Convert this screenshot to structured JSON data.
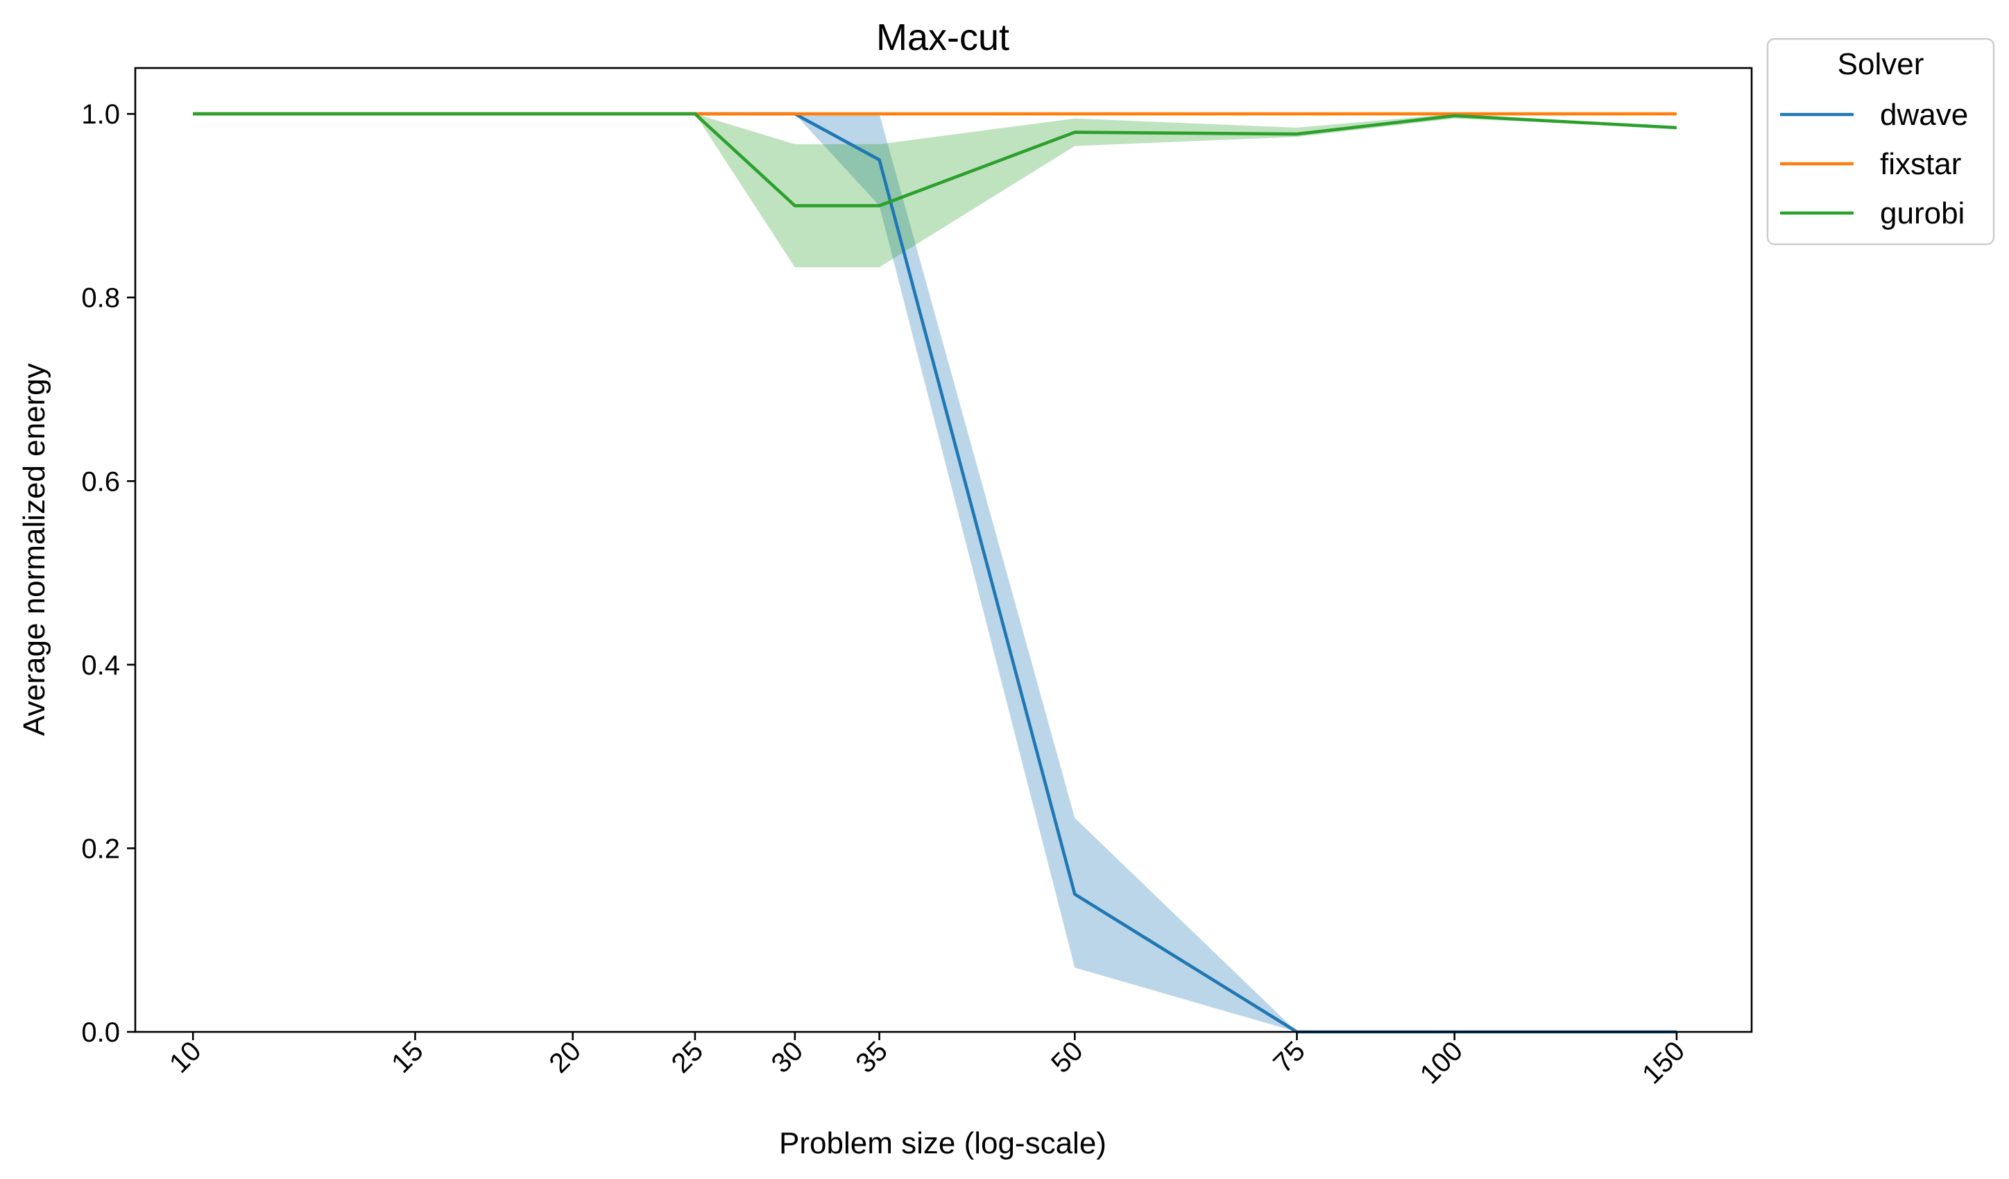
{
  "chart_data": {
    "type": "line",
    "title": "Max-cut",
    "xlabel": "Problem size (log-scale)",
    "ylabel": "Average normalized energy",
    "xscale": "log",
    "xlim": [
      9.0,
      172
    ],
    "ylim": [
      0.0,
      1.05
    ],
    "x_ticks": [
      10,
      15,
      20,
      25,
      30,
      35,
      50,
      75,
      100,
      150
    ],
    "y_ticks": [
      "0.0",
      "0.2",
      "0.4",
      "0.6",
      "0.8",
      "1.0"
    ],
    "grid": false,
    "legend": {
      "title": "Solver",
      "placement": "outside-top-right"
    },
    "series": [
      {
        "name": "dwave",
        "color": "#1f77b4",
        "x": [
          10,
          15,
          20,
          25,
          30,
          35,
          50,
          75,
          100,
          150
        ],
        "values": [
          1.0,
          1.0,
          1.0,
          1.0,
          1.0,
          0.95,
          0.15,
          0.0,
          0.0,
          0.0
        ],
        "band_low": [
          1.0,
          1.0,
          1.0,
          1.0,
          1.0,
          0.9,
          0.07,
          0.0,
          0.0,
          0.0
        ],
        "band_high": [
          1.0,
          1.0,
          1.0,
          1.0,
          1.0,
          1.0,
          0.233,
          0.0,
          0.0,
          0.0
        ]
      },
      {
        "name": "fixstar",
        "color": "#ff7f0e",
        "x": [
          10,
          15,
          20,
          25,
          30,
          35,
          50,
          75,
          100,
          150
        ],
        "values": [
          1.0,
          1.0,
          1.0,
          1.0,
          1.0,
          1.0,
          1.0,
          1.0,
          1.0,
          1.0
        ],
        "band_low": [
          1.0,
          1.0,
          1.0,
          1.0,
          1.0,
          1.0,
          1.0,
          1.0,
          1.0,
          1.0
        ],
        "band_high": [
          1.0,
          1.0,
          1.0,
          1.0,
          1.0,
          1.0,
          1.0,
          1.0,
          1.0,
          1.0
        ]
      },
      {
        "name": "gurobi",
        "color": "#2ca02c",
        "x": [
          10,
          15,
          20,
          25,
          30,
          35,
          50,
          75,
          100,
          150
        ],
        "values": [
          1.0,
          1.0,
          1.0,
          1.0,
          0.9,
          0.9,
          0.98,
          0.978,
          0.998,
          0.985
        ],
        "band_low": [
          1.0,
          1.0,
          1.0,
          1.0,
          0.833,
          0.833,
          0.965,
          0.975,
          0.995,
          0.985
        ],
        "band_high": [
          1.0,
          1.0,
          1.0,
          1.0,
          0.967,
          0.967,
          0.995,
          0.985,
          1.0,
          0.985
        ]
      }
    ]
  }
}
